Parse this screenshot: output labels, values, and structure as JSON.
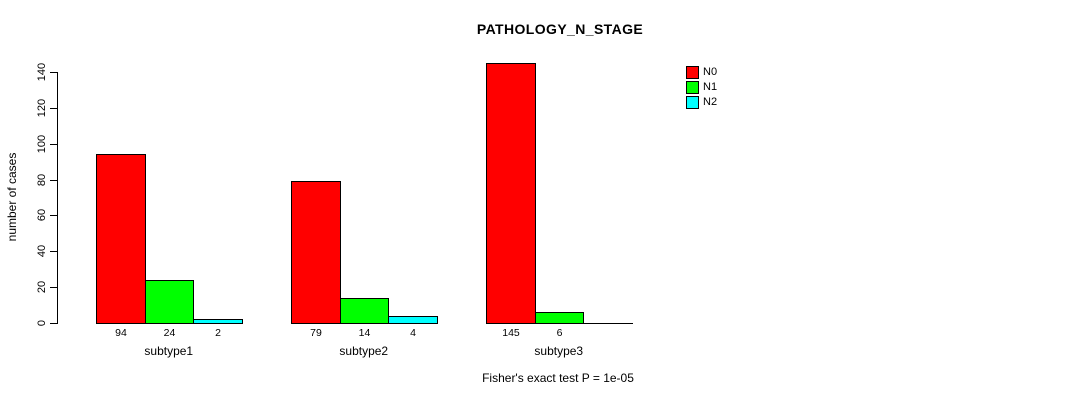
{
  "chart_data": {
    "type": "bar",
    "title": "PATHOLOGY_N_STAGE",
    "ylabel": "number of cases",
    "xlabel": "",
    "categories": [
      "subtype1",
      "subtype2",
      "subtype3"
    ],
    "series": [
      {
        "name": "N0",
        "color": "#ff0000",
        "values": [
          94,
          79,
          145
        ]
      },
      {
        "name": "N1",
        "color": "#00ff00",
        "values": [
          24,
          14,
          6
        ]
      },
      {
        "name": "N2",
        "color": "#00ffff",
        "values": [
          2,
          4,
          0
        ]
      }
    ],
    "yticks": [
      0,
      20,
      40,
      60,
      80,
      100,
      120,
      140
    ],
    "ylim": [
      0,
      140
    ],
    "grid": false,
    "legend_position": "top-right",
    "bar_border_color": "#000000",
    "value_labels_under_bars": true,
    "hide_zero_value_labels": true,
    "annotation": "Fisher's exact test P = 1e-05"
  },
  "colors": {
    "background": "#ffffff",
    "text": "#000000",
    "axis": "#000000"
  }
}
